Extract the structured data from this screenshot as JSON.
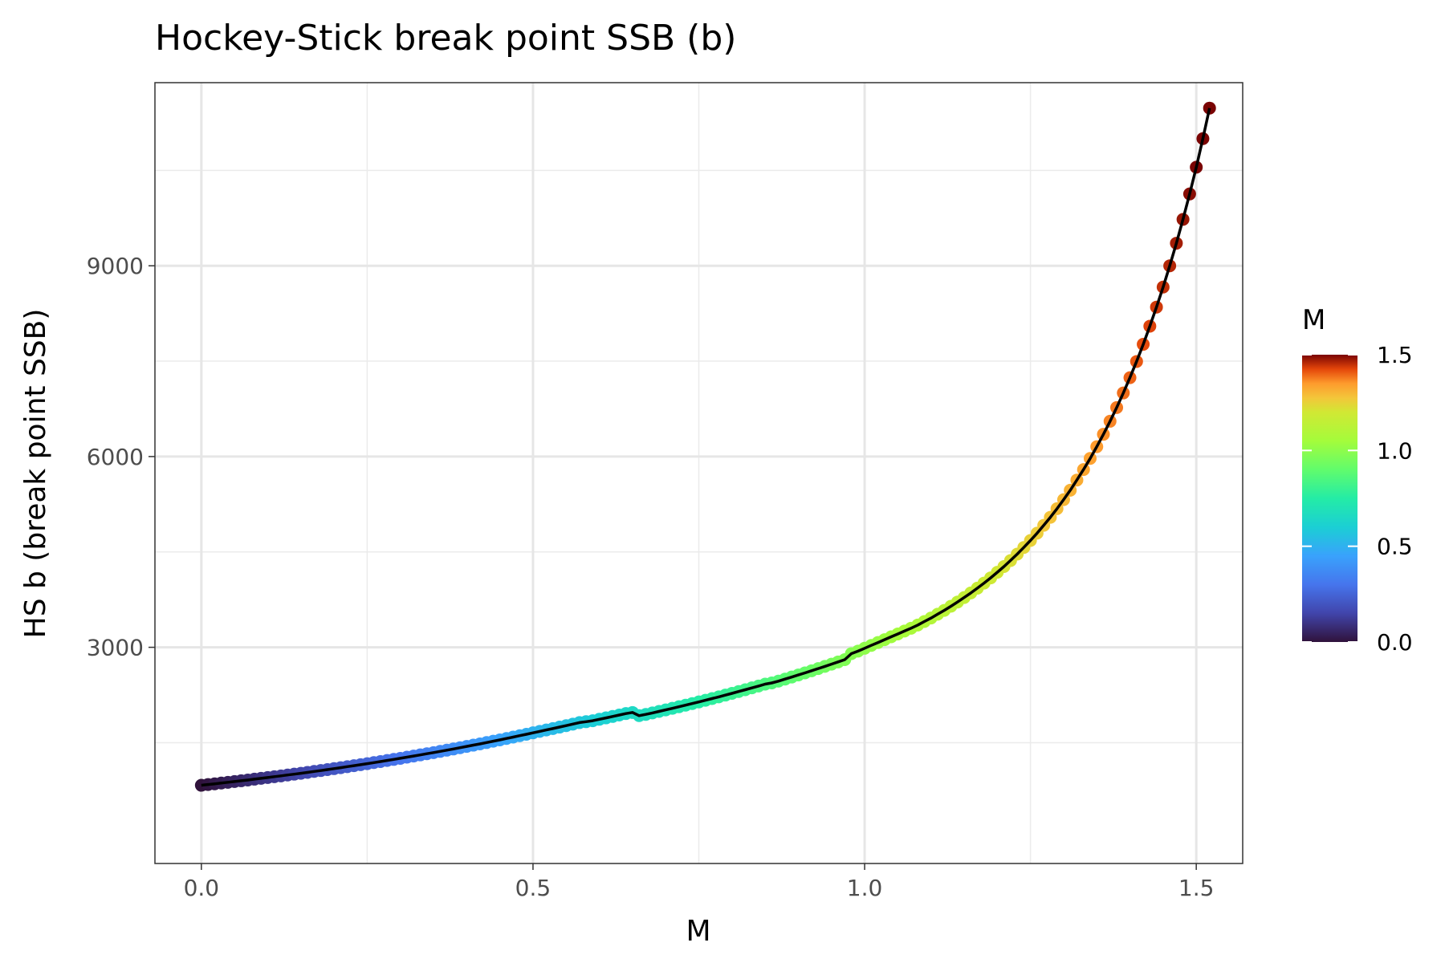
{
  "chart_data": {
    "type": "scatter",
    "title": "Hockey-Stick break point SSB (b)",
    "xlabel": "M",
    "ylabel": "HS b (break point SSB)",
    "xlim": [
      -0.07,
      1.57
    ],
    "ylim": [
      -400,
      11880
    ],
    "x_ticks": [
      0.0,
      0.5,
      1.0,
      1.5
    ],
    "x_tick_labels": [
      "0.0",
      "0.5",
      "1.0",
      "1.5"
    ],
    "y_ticks": [
      3000,
      6000,
      9000
    ],
    "y_tick_labels": [
      "3000",
      "6000",
      "9000"
    ],
    "grid": true,
    "line_color": "#000000",
    "color_scale": {
      "title": "M",
      "palette": "turbo",
      "range": [
        0.0,
        1.5
      ],
      "ticks": [
        0.0,
        0.5,
        1.0,
        1.5
      ],
      "tick_labels": [
        "0.0",
        "0.5",
        "1.0",
        "1.5"
      ],
      "legend_position": "right"
    },
    "points": [
      {
        "x": 0.0,
        "y": 830
      },
      {
        "x": 0.01,
        "y": 842
      },
      {
        "x": 0.02,
        "y": 853
      },
      {
        "x": 0.03,
        "y": 865
      },
      {
        "x": 0.04,
        "y": 877
      },
      {
        "x": 0.05,
        "y": 889
      },
      {
        "x": 0.06,
        "y": 901
      },
      {
        "x": 0.07,
        "y": 913
      },
      {
        "x": 0.08,
        "y": 926
      },
      {
        "x": 0.09,
        "y": 939
      },
      {
        "x": 0.1,
        "y": 952
      },
      {
        "x": 0.11,
        "y": 965
      },
      {
        "x": 0.12,
        "y": 978
      },
      {
        "x": 0.13,
        "y": 992
      },
      {
        "x": 0.14,
        "y": 1005
      },
      {
        "x": 0.15,
        "y": 1019
      },
      {
        "x": 0.16,
        "y": 1033
      },
      {
        "x": 0.17,
        "y": 1048
      },
      {
        "x": 0.18,
        "y": 1062
      },
      {
        "x": 0.19,
        "y": 1077
      },
      {
        "x": 0.2,
        "y": 1092
      },
      {
        "x": 0.21,
        "y": 1107
      },
      {
        "x": 0.22,
        "y": 1123
      },
      {
        "x": 0.23,
        "y": 1138
      },
      {
        "x": 0.24,
        "y": 1154
      },
      {
        "x": 0.25,
        "y": 1170
      },
      {
        "x": 0.26,
        "y": 1187
      },
      {
        "x": 0.27,
        "y": 1203
      },
      {
        "x": 0.28,
        "y": 1220
      },
      {
        "x": 0.29,
        "y": 1237
      },
      {
        "x": 0.3,
        "y": 1254
      },
      {
        "x": 0.31,
        "y": 1272
      },
      {
        "x": 0.32,
        "y": 1290
      },
      {
        "x": 0.33,
        "y": 1308
      },
      {
        "x": 0.34,
        "y": 1326
      },
      {
        "x": 0.35,
        "y": 1344
      },
      {
        "x": 0.36,
        "y": 1363
      },
      {
        "x": 0.37,
        "y": 1382
      },
      {
        "x": 0.38,
        "y": 1401
      },
      {
        "x": 0.39,
        "y": 1421
      },
      {
        "x": 0.4,
        "y": 1441
      },
      {
        "x": 0.41,
        "y": 1461
      },
      {
        "x": 0.42,
        "y": 1481
      },
      {
        "x": 0.43,
        "y": 1502
      },
      {
        "x": 0.44,
        "y": 1523
      },
      {
        "x": 0.45,
        "y": 1544
      },
      {
        "x": 0.46,
        "y": 1566
      },
      {
        "x": 0.47,
        "y": 1588
      },
      {
        "x": 0.48,
        "y": 1610
      },
      {
        "x": 0.49,
        "y": 1632
      },
      {
        "x": 0.5,
        "y": 1655
      },
      {
        "x": 0.51,
        "y": 1678
      },
      {
        "x": 0.52,
        "y": 1700
      },
      {
        "x": 0.53,
        "y": 1722
      },
      {
        "x": 0.54,
        "y": 1745
      },
      {
        "x": 0.55,
        "y": 1768
      },
      {
        "x": 0.56,
        "y": 1792
      },
      {
        "x": 0.57,
        "y": 1816
      },
      {
        "x": 0.58,
        "y": 1830
      },
      {
        "x": 0.59,
        "y": 1845
      },
      {
        "x": 0.6,
        "y": 1868
      },
      {
        "x": 0.61,
        "y": 1890
      },
      {
        "x": 0.62,
        "y": 1912
      },
      {
        "x": 0.63,
        "y": 1935
      },
      {
        "x": 0.64,
        "y": 1958
      },
      {
        "x": 0.65,
        "y": 1975
      },
      {
        "x": 0.66,
        "y": 1925
      },
      {
        "x": 0.67,
        "y": 1945
      },
      {
        "x": 0.68,
        "y": 1968
      },
      {
        "x": 0.69,
        "y": 1992
      },
      {
        "x": 0.7,
        "y": 2015
      },
      {
        "x": 0.71,
        "y": 2040
      },
      {
        "x": 0.72,
        "y": 2065
      },
      {
        "x": 0.73,
        "y": 2090
      },
      {
        "x": 0.74,
        "y": 2115
      },
      {
        "x": 0.75,
        "y": 2141
      },
      {
        "x": 0.76,
        "y": 2167
      },
      {
        "x": 0.77,
        "y": 2194
      },
      {
        "x": 0.78,
        "y": 2220
      },
      {
        "x": 0.79,
        "y": 2248
      },
      {
        "x": 0.8,
        "y": 2276
      },
      {
        "x": 0.81,
        "y": 2304
      },
      {
        "x": 0.82,
        "y": 2333
      },
      {
        "x": 0.83,
        "y": 2362
      },
      {
        "x": 0.84,
        "y": 2391
      },
      {
        "x": 0.85,
        "y": 2421
      },
      {
        "x": 0.86,
        "y": 2440
      },
      {
        "x": 0.87,
        "y": 2468
      },
      {
        "x": 0.88,
        "y": 2500
      },
      {
        "x": 0.89,
        "y": 2532
      },
      {
        "x": 0.9,
        "y": 2565
      },
      {
        "x": 0.91,
        "y": 2598
      },
      {
        "x": 0.92,
        "y": 2631
      },
      {
        "x": 0.93,
        "y": 2665
      },
      {
        "x": 0.94,
        "y": 2700
      },
      {
        "x": 0.95,
        "y": 2735
      },
      {
        "x": 0.96,
        "y": 2770
      },
      {
        "x": 0.97,
        "y": 2806
      },
      {
        "x": 0.98,
        "y": 2900
      },
      {
        "x": 0.99,
        "y": 2940
      },
      {
        "x": 1.0,
        "y": 2985
      },
      {
        "x": 1.01,
        "y": 3030
      },
      {
        "x": 1.02,
        "y": 3075
      },
      {
        "x": 1.03,
        "y": 3120
      },
      {
        "x": 1.04,
        "y": 3165
      },
      {
        "x": 1.05,
        "y": 3210
      },
      {
        "x": 1.06,
        "y": 3255
      },
      {
        "x": 1.07,
        "y": 3300
      },
      {
        "x": 1.08,
        "y": 3350
      },
      {
        "x": 1.09,
        "y": 3405
      },
      {
        "x": 1.1,
        "y": 3460
      },
      {
        "x": 1.11,
        "y": 3520
      },
      {
        "x": 1.12,
        "y": 3580
      },
      {
        "x": 1.13,
        "y": 3645
      },
      {
        "x": 1.14,
        "y": 3712
      },
      {
        "x": 1.15,
        "y": 3782
      },
      {
        "x": 1.16,
        "y": 3855
      },
      {
        "x": 1.17,
        "y": 3930
      },
      {
        "x": 1.18,
        "y": 4010
      },
      {
        "x": 1.19,
        "y": 4092
      },
      {
        "x": 1.2,
        "y": 4180
      },
      {
        "x": 1.21,
        "y": 4270
      },
      {
        "x": 1.22,
        "y": 4365
      },
      {
        "x": 1.23,
        "y": 4465
      },
      {
        "x": 1.24,
        "y": 4570
      },
      {
        "x": 1.25,
        "y": 4680
      },
      {
        "x": 1.26,
        "y": 4795
      },
      {
        "x": 1.27,
        "y": 4918
      },
      {
        "x": 1.28,
        "y": 5045
      },
      {
        "x": 1.29,
        "y": 5180
      },
      {
        "x": 1.3,
        "y": 5322
      },
      {
        "x": 1.31,
        "y": 5470
      },
      {
        "x": 1.32,
        "y": 5630
      },
      {
        "x": 1.33,
        "y": 5795
      },
      {
        "x": 1.34,
        "y": 5970
      },
      {
        "x": 1.35,
        "y": 6155
      },
      {
        "x": 1.36,
        "y": 6350
      },
      {
        "x": 1.37,
        "y": 6555
      },
      {
        "x": 1.38,
        "y": 6770
      },
      {
        "x": 1.39,
        "y": 7000
      },
      {
        "x": 1.4,
        "y": 7240
      },
      {
        "x": 1.41,
        "y": 7495
      },
      {
        "x": 1.42,
        "y": 7765
      },
      {
        "x": 1.43,
        "y": 8050
      },
      {
        "x": 1.44,
        "y": 8350
      },
      {
        "x": 1.45,
        "y": 8665
      },
      {
        "x": 1.46,
        "y": 9000
      },
      {
        "x": 1.47,
        "y": 9355
      },
      {
        "x": 1.48,
        "y": 9730
      },
      {
        "x": 1.49,
        "y": 10130
      },
      {
        "x": 1.5,
        "y": 10550
      },
      {
        "x": 1.51,
        "y": 11000
      },
      {
        "x": 1.52,
        "y": 11480
      }
    ]
  }
}
